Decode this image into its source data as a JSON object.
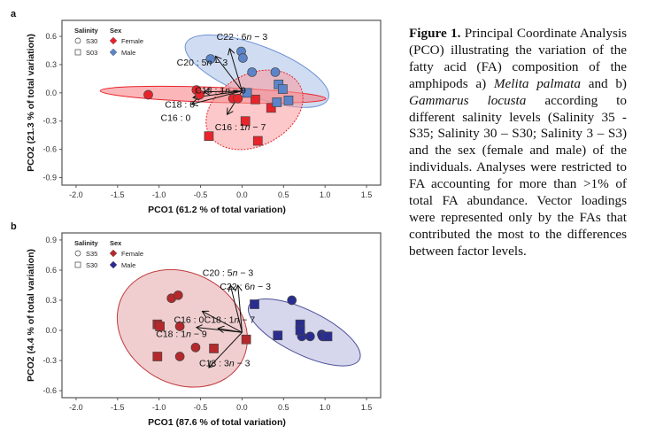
{
  "chart_data": [
    {
      "panel": "a",
      "type": "scatter",
      "title": "",
      "xlabel": "PCO1 (61.2 % of total variation)",
      "ylabel": "PCO2 (21.3 % of total variation)",
      "xlim": [
        -2.17,
        1.67
      ],
      "ylim": [
        -0.98,
        0.77
      ],
      "xticks": [
        "-2.0",
        "-1.5",
        "-1.0",
        "-0.5",
        "0.0",
        "0.5",
        "1.0",
        "1.5"
      ],
      "xtick_values": [
        -2.0,
        -1.5,
        -1.0,
        -0.5,
        0.0,
        0.5,
        1.0,
        1.5
      ],
      "yticks": [
        "0.6",
        "0.3",
        "0.0",
        "-0.3",
        "-0.6",
        "-0.9"
      ],
      "ytick_values": [
        0.6,
        0.3,
        0.0,
        -0.3,
        -0.6,
        -0.9
      ],
      "grid": false,
      "legend": {
        "placement": "top-left",
        "salinity_title": "Salinity",
        "sex_title": "Sex",
        "salinity": [
          {
            "label": "S30",
            "shape": "circle"
          },
          {
            "label": "S03",
            "shape": "square"
          }
        ],
        "sex": [
          {
            "label": "Female",
            "color": "#e8242b"
          },
          {
            "label": "Male",
            "color": "#5b84c9"
          }
        ]
      },
      "series": [
        {
          "name": "Female S30",
          "sex": "Female",
          "salinity": "S30",
          "shape": "circle",
          "color": "#e8242b",
          "points": [
            [
              -1.13,
              -0.02
            ],
            [
              -0.55,
              0.03
            ],
            [
              -0.51,
              -0.02
            ],
            [
              -0.11,
              -0.06
            ],
            [
              -0.05,
              -0.06
            ]
          ]
        },
        {
          "name": "Female S03",
          "sex": "Female",
          "salinity": "S03",
          "shape": "square",
          "color": "#e8242b",
          "points": [
            [
              0.16,
              -0.07
            ],
            [
              0.35,
              -0.16
            ],
            [
              0.04,
              -0.3
            ],
            [
              -0.4,
              -0.46
            ],
            [
              0.19,
              -0.51
            ]
          ]
        },
        {
          "name": "Male S30",
          "sex": "Male",
          "salinity": "S30",
          "shape": "circle",
          "color": "#5b84c9",
          "points": [
            [
              -0.38,
              0.36
            ],
            [
              -0.01,
              0.44
            ],
            [
              0.01,
              0.37
            ],
            [
              0.12,
              0.22
            ],
            [
              0.4,
              0.22
            ]
          ]
        },
        {
          "name": "Male S03",
          "sex": "Male",
          "salinity": "S03",
          "shape": "square",
          "color": "#5b84c9",
          "points": [
            [
              0.06,
              0.0
            ],
            [
              0.44,
              0.09
            ],
            [
              0.49,
              0.04
            ],
            [
              0.42,
              -0.1
            ],
            [
              0.56,
              -0.08
            ]
          ]
        }
      ],
      "ellipses": [
        {
          "group": "Male",
          "center": [
            0.18,
            0.23
          ],
          "rx": 0.92,
          "ry": 0.27,
          "angle_deg": 21,
          "fill": "#a9bfe6",
          "stroke": "#6d93d6",
          "dashed": false
        },
        {
          "group": "Female narrow",
          "center": [
            -0.35,
            -0.02
          ],
          "rx": 1.36,
          "ry": 0.08,
          "angle_deg": 2,
          "fill": "#f57a7f",
          "stroke": "#e8242b",
          "dashed": false
        },
        {
          "group": "Female",
          "center": [
            0.15,
            -0.18
          ],
          "rx": 0.62,
          "ry": 0.38,
          "angle_deg": -28,
          "fill": "#fa9a9d",
          "stroke": "#e8242b",
          "dashed": true
        }
      ],
      "vector_origin": [
        0.0,
        0.02
      ],
      "vectors": [
        {
          "label": "C22:6n−3",
          "end": [
            -0.15,
            0.47
          ],
          "label_pos": [
            0.0,
            0.59
          ]
        },
        {
          "label": "C20:5n−3",
          "end": [
            -0.32,
            0.39
          ],
          "label_pos": [
            -0.48,
            0.32
          ]
        },
        {
          "label": "C18:1n−9",
          "end": [
            -0.46,
            0.01
          ],
          "label_pos": [
            -0.26,
            0.02
          ]
        },
        {
          "label": "C18:0",
          "end": [
            -0.59,
            -0.05
          ],
          "label_pos": [
            -0.75,
            -0.13
          ]
        },
        {
          "label": "C16:0",
          "end": [
            -0.61,
            -0.12
          ],
          "label_pos": [
            -0.8,
            -0.27
          ]
        },
        {
          "label": "C16:1n−7",
          "end": [
            -0.18,
            -0.23
          ],
          "label_pos": [
            -0.02,
            -0.37
          ]
        }
      ]
    },
    {
      "panel": "b",
      "type": "scatter",
      "title": "",
      "xlabel": "PCO1 (87.6 % of total variation)",
      "ylabel": "PCO2 (4.4 % of total variation)",
      "xlim": [
        -2.17,
        1.67
      ],
      "ylim": [
        -0.67,
        0.97
      ],
      "xticks": [
        "-2.0",
        "-1.5",
        "-1.0",
        "-0.5",
        "0.0",
        "0.5",
        "1.0",
        "1.5"
      ],
      "xtick_values": [
        -2.0,
        -1.5,
        -1.0,
        -0.5,
        0.0,
        0.5,
        1.0,
        1.5
      ],
      "yticks": [
        "0.9",
        "0.6",
        "0.3",
        "0.0",
        "-0.3",
        "-0.6"
      ],
      "ytick_values": [
        0.9,
        0.6,
        0.3,
        0.0,
        -0.3,
        -0.6
      ],
      "grid": false,
      "legend": {
        "placement": "top-left",
        "salinity_title": "Salinity",
        "sex_title": "Sex",
        "salinity": [
          {
            "label": "S35",
            "shape": "circle"
          },
          {
            "label": "S30",
            "shape": "square"
          }
        ],
        "sex": [
          {
            "label": "Female",
            "color": "#b5282c"
          },
          {
            "label": "Male",
            "color": "#2a2d8f"
          }
        ]
      },
      "series": [
        {
          "name": "Female S35",
          "sex": "Female",
          "salinity": "S35",
          "shape": "circle",
          "color": "#b5282c",
          "points": [
            [
              -0.85,
              0.32
            ],
            [
              -0.77,
              0.35
            ],
            [
              -0.75,
              0.04
            ],
            [
              -0.56,
              -0.17
            ],
            [
              -0.75,
              -0.26
            ]
          ]
        },
        {
          "name": "Female S30",
          "sex": "Female",
          "salinity": "S30",
          "shape": "square",
          "color": "#b5282c",
          "points": [
            [
              -1.02,
              0.06
            ],
            [
              -0.99,
              0.04
            ],
            [
              -1.02,
              -0.26
            ],
            [
              -0.34,
              -0.18
            ],
            [
              0.05,
              -0.09
            ]
          ]
        },
        {
          "name": "Male S35",
          "sex": "Male",
          "salinity": "S35",
          "shape": "circle",
          "color": "#2a2d8f",
          "points": [
            [
              0.6,
              0.3
            ],
            [
              0.72,
              -0.06
            ],
            [
              0.82,
              -0.06
            ],
            [
              0.96,
              -0.04
            ],
            [
              0.97,
              -0.06
            ]
          ]
        },
        {
          "name": "Male S30",
          "sex": "Male",
          "salinity": "S30",
          "shape": "square",
          "color": "#2a2d8f",
          "points": [
            [
              0.15,
              0.26
            ],
            [
              0.43,
              -0.05
            ],
            [
              0.7,
              0.06
            ],
            [
              0.7,
              0.0
            ],
            [
              1.03,
              -0.06
            ]
          ]
        }
      ],
      "ellipses": [
        {
          "group": "Female",
          "center": [
            -0.72,
            0.02
          ],
          "rx": 0.82,
          "ry": 0.55,
          "angle_deg": 30,
          "fill": "#e3a5a7",
          "stroke": "#c0393d",
          "dashed": false
        },
        {
          "group": "Male",
          "center": [
            0.75,
            -0.02
          ],
          "rx": 0.74,
          "ry": 0.22,
          "angle_deg": 26,
          "fill": "#b4b7dc",
          "stroke": "#4d5099",
          "dashed": false
        }
      ],
      "vector_origin": [
        0.0,
        -0.02
      ],
      "vectors": [
        {
          "label": "C20:5n−3",
          "end": [
            -0.14,
            0.45
          ],
          "label_pos": [
            -0.17,
            0.57
          ]
        },
        {
          "label": "C22:6n−3",
          "end": [
            -0.05,
            0.45
          ],
          "label_pos": [
            0.04,
            0.43
          ]
        },
        {
          "label": "C16:0",
          "end": [
            -0.48,
            0.19
          ],
          "label_pos": [
            -0.64,
            0.1
          ]
        },
        {
          "label": "C18:1n−7",
          "end": [
            -0.29,
            0.02
          ],
          "label_pos": [
            -0.15,
            0.1
          ]
        },
        {
          "label": "C18:1n−9",
          "end": [
            -0.55,
            0.03
          ],
          "label_pos": [
            -0.73,
            -0.04
          ]
        },
        {
          "label": "C18:3n−3",
          "end": [
            -0.4,
            -0.37
          ],
          "label_pos": [
            -0.21,
            -0.33
          ]
        }
      ]
    }
  ],
  "caption": {
    "label": "Figure 1.",
    "text_1": " Principal Coordinate Analysis (PCO) illustrating the variation of the fatty acid (FA) composition of the amphipods a) ",
    "species_a": "Melita palmata",
    "text_2": " and b) ",
    "species_b": "Gammarus locusta",
    "text_3": " according to different salinity levels (Salinity 35 - S35; Salinity 30 – S30; Salinity 3 – S3) and the sex (female and male) of the individuals. Analyses were restricted to FA accounting for more than >1% of total FA abundance. Vector loadings were represented only by the FAs that contributed the most to the differences between factor levels."
  }
}
